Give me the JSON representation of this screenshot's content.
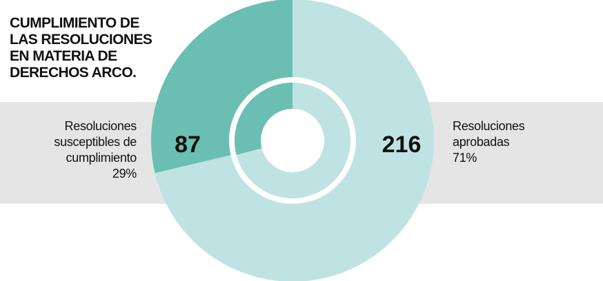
{
  "chart_data": {
    "type": "pie",
    "donut": true,
    "title": "CUMPLIMIENTO DE LAS RESOLUCIONES EN MATERIA DE DERECHOS ARCO.",
    "categories": [
      "Resoluciones susceptibles de cumplimiento",
      "Resoluciones aprobadas"
    ],
    "values": [
      87,
      216
    ],
    "percentages": [
      29,
      71
    ],
    "percentage_labels": [
      "29%",
      "71%"
    ],
    "colors": [
      "#6bbfb2",
      "#bfe3e2"
    ]
  }
}
